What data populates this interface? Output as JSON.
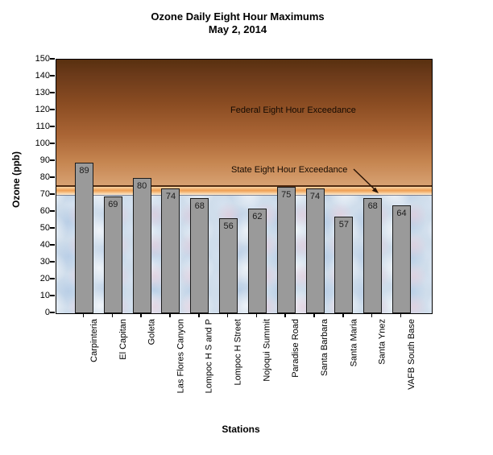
{
  "chart_data": {
    "type": "bar",
    "title": "Ozone Daily Eight Hour Maximums",
    "subtitle": "May 2, 2014",
    "xlabel": "Stations",
    "ylabel": "Ozone (ppb)",
    "ylim": [
      0,
      150
    ],
    "ytick_step": 10,
    "grid": false,
    "legend": null,
    "categories": [
      "Carpinteria",
      "El Capitan",
      "Goleta",
      "Las Flores Canyon",
      "Lompoc H S and P",
      "Lompoc H Street",
      "Nojoqui Summit",
      "Paradise Road",
      "Santa Barbara",
      "Santa Maria",
      "Santa Ynez",
      "VAFB South Base"
    ],
    "values": [
      89,
      69,
      80,
      74,
      68,
      56,
      62,
      75,
      74,
      57,
      68,
      64
    ],
    "thresholds": {
      "state_standard_ppb": 70,
      "federal_standard_ppb": 75
    },
    "annotations": {
      "federal_label": "Federal Eight Hour Exceedance",
      "state_label": "State Eight Hour Exceedance",
      "state_arrow_points_to_ppb": 70
    }
  },
  "colors": {
    "bar_fill": "#9a9a9a",
    "bar_border": "#1a1a1a",
    "federal_zone_top": "#58300f",
    "federal_zone_bottom": "#d7a172",
    "federal_line": "#4f2a10",
    "band_orange": "#ef9e53",
    "band_cream": "#f8d7a8",
    "state_zone_blue": "#cfddeb",
    "text": "#000000"
  }
}
